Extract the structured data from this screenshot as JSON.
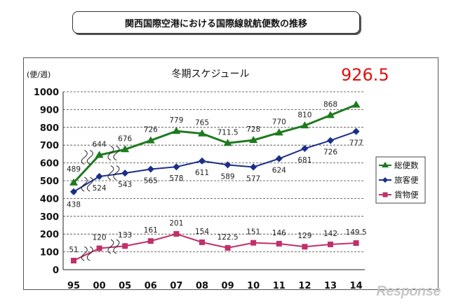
{
  "header": {
    "title": "関西国際空港における国際線就航便数の推移"
  },
  "watermark": "Response",
  "chart_data": {
    "type": "line",
    "title": "冬期スケジュール",
    "ylabel": "(便/週)",
    "highlight": {
      "text": "926.5",
      "color": "#e01010"
    },
    "categories": [
      "95",
      "00",
      "05",
      "06",
      "07",
      "08",
      "09",
      "10",
      "11",
      "12",
      "13",
      "14"
    ],
    "yticks": [
      0,
      100,
      200,
      300,
      400,
      500,
      600,
      700,
      800,
      900,
      1000
    ],
    "ylim": [
      0,
      1000
    ],
    "axis_break_after_index": 1,
    "grid": true,
    "legend_position": "right",
    "series": [
      {
        "name": "総便数",
        "color": "#1e7a1e",
        "marker": "triangle",
        "values": [
          489,
          644,
          676,
          726,
          779,
          765,
          711.5,
          728,
          770,
          810,
          868,
          926.5
        ],
        "labels": [
          "489",
          "644",
          "676",
          "726",
          "779",
          "765",
          "711.5",
          "728",
          "770",
          "810",
          "868",
          ""
        ]
      },
      {
        "name": "旅客便",
        "color": "#1a2e8a",
        "marker": "diamond",
        "values": [
          438,
          524,
          543,
          565,
          578,
          611,
          589,
          577,
          624,
          681,
          726,
          777
        ],
        "labels": [
          "438",
          "524",
          "543",
          "565",
          "578",
          "611",
          "589",
          "577",
          "624",
          "681",
          "726",
          "777"
        ]
      },
      {
        "name": "貨物便",
        "color": "#c0306a",
        "marker": "square",
        "values": [
          51,
          120,
          133,
          161,
          201,
          154,
          122.5,
          151,
          146,
          129,
          142,
          149.5
        ],
        "labels": [
          "51",
          "120",
          "133",
          "161",
          "201",
          "154",
          "122.5",
          "151",
          "146",
          "129",
          "142",
          "149.5"
        ]
      }
    ]
  }
}
